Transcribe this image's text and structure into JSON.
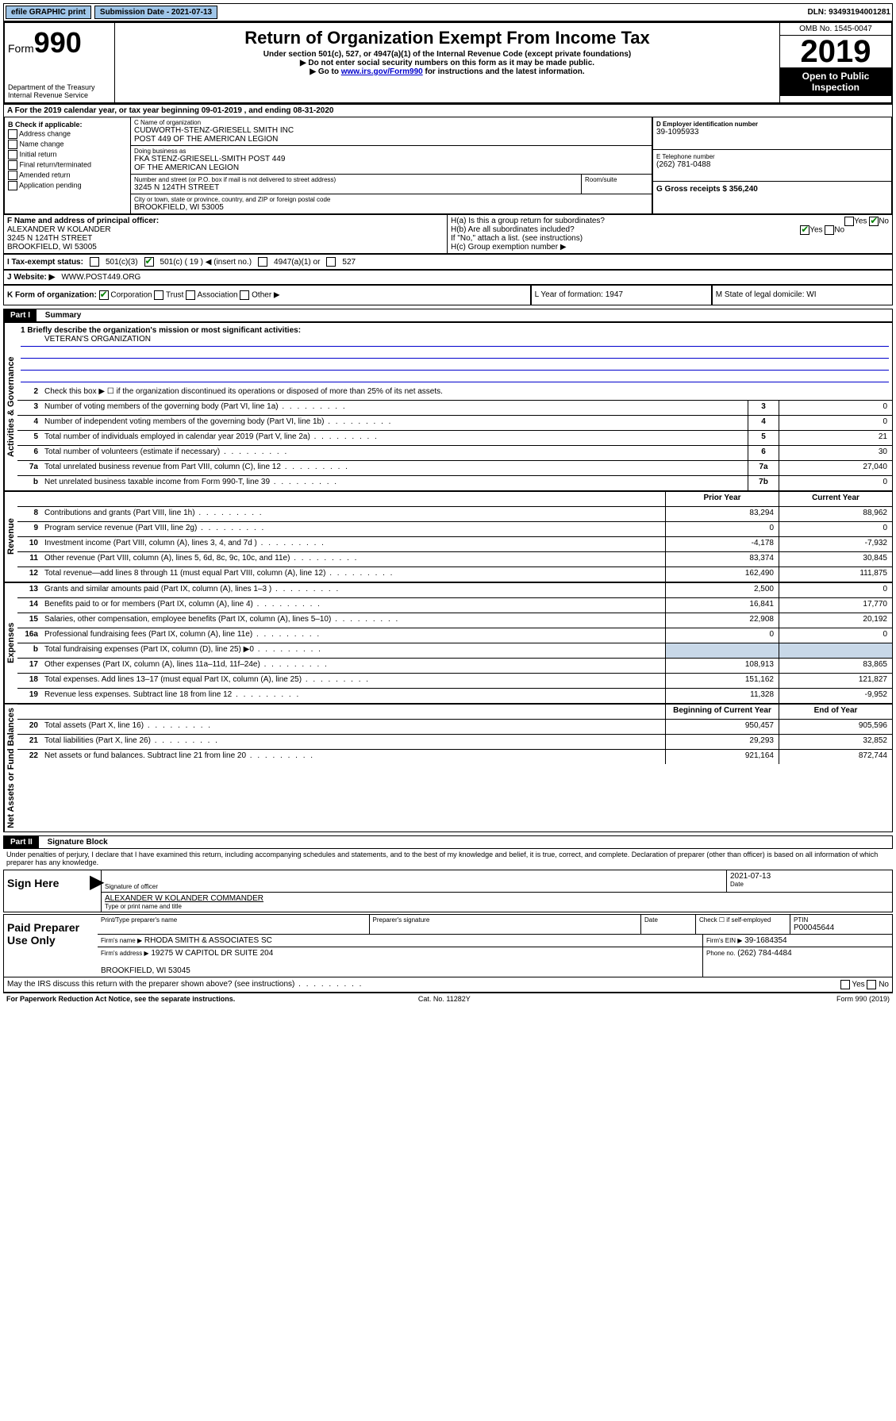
{
  "top": {
    "efile": "efile GRAPHIC print",
    "submission": "Submission Date - 2021-07-13",
    "dln": "DLN: 93493194001281"
  },
  "header": {
    "form_prefix": "Form",
    "form_num": "990",
    "title": "Return of Organization Exempt From Income Tax",
    "sub1": "Under section 501(c), 527, or 4947(a)(1) of the Internal Revenue Code (except private foundations)",
    "sub2": "▶ Do not enter social security numbers on this form as it may be made public.",
    "sub3_pre": "▶ Go to ",
    "sub3_link": "www.irs.gov/Form990",
    "sub3_post": " for instructions and the latest information.",
    "dept": "Department of the Treasury\nInternal Revenue Service",
    "omb": "OMB No. 1545-0047",
    "year": "2019",
    "open": "Open to Public Inspection"
  },
  "row_a": "A  For the 2019 calendar year, or tax year beginning 09-01-2019    , and ending 08-31-2020",
  "block_b": {
    "label": "B Check if applicable:",
    "items": [
      "Address change",
      "Name change",
      "Initial return",
      "Final return/terminated",
      "Amended return",
      "Application pending"
    ]
  },
  "block_c": {
    "name_label": "C Name of organization",
    "name": "CUDWORTH-STENZ-GRIESELL SMITH INC\nPOST 449 OF THE AMERICAN LEGION",
    "dba_label": "Doing business as",
    "dba": "FKA STENZ-GRIESELL-SMITH POST 449\nOF THE AMERICAN LEGION",
    "addr_label": "Number and street (or P.O. box if mail is not delivered to street address)",
    "room_label": "Room/suite",
    "addr": "3245 N 124TH STREET",
    "city_label": "City or town, state or province, country, and ZIP or foreign postal code",
    "city": "BROOKFIELD, WI  53005"
  },
  "block_d": {
    "label": "D Employer identification number",
    "value": "39-1095933"
  },
  "block_e": {
    "label": "E Telephone number",
    "value": "(262) 781-0488"
  },
  "block_g": {
    "label": "G Gross receipts $ 356,240"
  },
  "block_f": {
    "label": "F  Name and address of principal officer:",
    "name": "ALEXANDER W KOLANDER",
    "addr": "3245 N 124TH STREET\nBROOKFIELD, WI  53005"
  },
  "block_h": {
    "ha": "H(a)  Is this a group return for subordinates?",
    "hb": "H(b)  Are all subordinates included?",
    "hb_note": "If \"No,\" attach a list. (see instructions)",
    "hc": "H(c)  Group exemption number ▶",
    "yes": "Yes",
    "no": "No"
  },
  "block_i": {
    "label": "I  Tax-exempt status:",
    "opt1": "501(c)(3)",
    "opt2": "501(c) ( 19 ) ◀ (insert no.)",
    "opt3": "4947(a)(1) or",
    "opt4": "527"
  },
  "block_j": {
    "label": "J  Website: ▶",
    "value": "WWW.POST449.ORG"
  },
  "block_k": {
    "label": "K Form of organization:",
    "o1": "Corporation",
    "o2": "Trust",
    "o3": "Association",
    "o4": "Other ▶"
  },
  "block_l": {
    "label": "L Year of formation: 1947"
  },
  "block_m": {
    "label": "M State of legal domicile: WI"
  },
  "part1": {
    "header": "Part I",
    "title": "Summary"
  },
  "mission": {
    "q": "1  Briefly describe the organization's mission or most significant activities:",
    "a": "VETERAN'S ORGANIZATION"
  },
  "gov_rows": [
    {
      "n": "2",
      "t": "Check this box ▶ ☐  if the organization discontinued its operations or disposed of more than 25% of its net assets."
    },
    {
      "n": "3",
      "t": "Number of voting members of the governing body (Part VI, line 1a)",
      "box": "3",
      "v": "0"
    },
    {
      "n": "4",
      "t": "Number of independent voting members of the governing body (Part VI, line 1b)",
      "box": "4",
      "v": "0"
    },
    {
      "n": "5",
      "t": "Total number of individuals employed in calendar year 2019 (Part V, line 2a)",
      "box": "5",
      "v": "21"
    },
    {
      "n": "6",
      "t": "Total number of volunteers (estimate if necessary)",
      "box": "6",
      "v": "30"
    },
    {
      "n": "7a",
      "t": "Total unrelated business revenue from Part VIII, column (C), line 12",
      "box": "7a",
      "v": "27,040"
    },
    {
      "n": "b",
      "t": "Net unrelated business taxable income from Form 990-T, line 39",
      "box": "7b",
      "v": "0"
    }
  ],
  "col_headers": {
    "prior": "Prior Year",
    "current": "Current Year"
  },
  "rev_rows": [
    {
      "n": "8",
      "t": "Contributions and grants (Part VIII, line 1h)",
      "p": "83,294",
      "c": "88,962"
    },
    {
      "n": "9",
      "t": "Program service revenue (Part VIII, line 2g)",
      "p": "0",
      "c": "0"
    },
    {
      "n": "10",
      "t": "Investment income (Part VIII, column (A), lines 3, 4, and 7d )",
      "p": "-4,178",
      "c": "-7,932"
    },
    {
      "n": "11",
      "t": "Other revenue (Part VIII, column (A), lines 5, 6d, 8c, 9c, 10c, and 11e)",
      "p": "83,374",
      "c": "30,845"
    },
    {
      "n": "12",
      "t": "Total revenue—add lines 8 through 11 (must equal Part VIII, column (A), line 12)",
      "p": "162,490",
      "c": "111,875"
    }
  ],
  "exp_rows": [
    {
      "n": "13",
      "t": "Grants and similar amounts paid (Part IX, column (A), lines 1–3 )",
      "p": "2,500",
      "c": "0"
    },
    {
      "n": "14",
      "t": "Benefits paid to or for members (Part IX, column (A), line 4)",
      "p": "16,841",
      "c": "17,770"
    },
    {
      "n": "15",
      "t": "Salaries, other compensation, employee benefits (Part IX, column (A), lines 5–10)",
      "p": "22,908",
      "c": "20,192"
    },
    {
      "n": "16a",
      "t": "Professional fundraising fees (Part IX, column (A), line 11e)",
      "p": "0",
      "c": "0"
    },
    {
      "n": "b",
      "t": "Total fundraising expenses (Part IX, column (D), line 25) ▶0",
      "p": "",
      "c": "",
      "shade": true
    },
    {
      "n": "17",
      "t": "Other expenses (Part IX, column (A), lines 11a–11d, 11f–24e)",
      "p": "108,913",
      "c": "83,865"
    },
    {
      "n": "18",
      "t": "Total expenses. Add lines 13–17 (must equal Part IX, column (A), line 25)",
      "p": "151,162",
      "c": "121,827"
    },
    {
      "n": "19",
      "t": "Revenue less expenses. Subtract line 18 from line 12",
      "p": "11,328",
      "c": "-9,952"
    }
  ],
  "na_headers": {
    "beg": "Beginning of Current Year",
    "end": "End of Year"
  },
  "na_rows": [
    {
      "n": "20",
      "t": "Total assets (Part X, line 16)",
      "p": "950,457",
      "c": "905,596"
    },
    {
      "n": "21",
      "t": "Total liabilities (Part X, line 26)",
      "p": "29,293",
      "c": "32,852"
    },
    {
      "n": "22",
      "t": "Net assets or fund balances. Subtract line 21 from line 20",
      "p": "921,164",
      "c": "872,744"
    }
  ],
  "part2": {
    "header": "Part II",
    "title": "Signature Block"
  },
  "perjury": "Under penalties of perjury, I declare that I have examined this return, including accompanying schedules and statements, and to the best of my knowledge and belief, it is true, correct, and complete. Declaration of preparer (other than officer) is based on all information of which preparer has any knowledge.",
  "sign": {
    "label": "Sign Here",
    "sig_label": "Signature of officer",
    "date": "2021-07-13",
    "date_label": "Date",
    "name": "ALEXANDER W KOLANDER  COMMANDER",
    "name_label": "Type or print name and title"
  },
  "paid": {
    "label": "Paid Preparer Use Only",
    "h1": "Print/Type preparer's name",
    "h2": "Preparer's signature",
    "h3": "Date",
    "h4_pre": "Check ☐ if self-employed",
    "h5": "PTIN",
    "ptin": "P00045644",
    "firm_name_label": "Firm's name    ▶",
    "firm_name": "RHODA SMITH & ASSOCIATES SC",
    "firm_ein_label": "Firm's EIN ▶",
    "firm_ein": "39-1684354",
    "firm_addr_label": "Firm's address ▶",
    "firm_addr": "19275 W CAPITOL DR SUITE 204\n\nBROOKFIELD, WI  53045",
    "phone_label": "Phone no.",
    "phone": "(262) 784-4484"
  },
  "discuss": "May the IRS discuss this return with the preparer shown above? (see instructions)",
  "footer": {
    "left": "For Paperwork Reduction Act Notice, see the separate instructions.",
    "mid": "Cat. No. 11282Y",
    "right": "Form 990 (2019)"
  },
  "vlabels": {
    "gov": "Activities & Governance",
    "rev": "Revenue",
    "exp": "Expenses",
    "na": "Net Assets or Fund Balances"
  },
  "yes": "Yes",
  "no": "No"
}
